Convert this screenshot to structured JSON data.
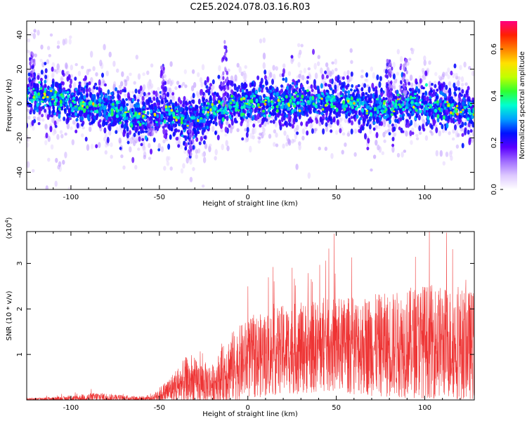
{
  "page_title": "C2E5.2024.078.03.16.R03",
  "chart_data": [
    {
      "type": "heatmap",
      "xlabel": "Height of straight line (km)",
      "ylabel": "Frequency (Hz)",
      "xlim": [
        -125,
        128
      ],
      "ylim": [
        -50,
        48
      ],
      "x_ticks": [
        -100,
        -50,
        0,
        50,
        100
      ],
      "y_ticks": [
        -40,
        -20,
        0,
        20,
        40
      ],
      "colorbar": {
        "label": "Normalized spectral amplitude",
        "range": [
          0.0,
          0.72
        ],
        "ticks": [
          "0.0",
          "0.2",
          "0.4",
          "0.6"
        ],
        "tick_values": [
          0.0,
          0.2,
          0.4,
          0.6
        ],
        "colormap": [
          "#ffffff",
          "#ddc8ff",
          "#a06cff",
          "#5a00ff",
          "#0010ff",
          "#00a0ff",
          "#00ffd0",
          "#30ff30",
          "#c0ff00",
          "#ffe000",
          "#ff8000",
          "#ff2000",
          "#ff0080"
        ]
      },
      "feature_center_hz": [
        {
          "x": -120,
          "y": 6
        },
        {
          "x": -100,
          "y": 0
        },
        {
          "x": -80,
          "y": -2
        },
        {
          "x": -58,
          "y": -10
        },
        {
          "x": -48,
          "y": -4
        },
        {
          "x": -33,
          "y": -12
        },
        {
          "x": -20,
          "y": -4
        },
        {
          "x": 0,
          "y": 1
        },
        {
          "x": 20,
          "y": 0
        },
        {
          "x": 40,
          "y": 2
        },
        {
          "x": 60,
          "y": 0
        },
        {
          "x": 70,
          "y": -4
        },
        {
          "x": 90,
          "y": 0
        },
        {
          "x": 110,
          "y": -2
        },
        {
          "x": 125,
          "y": -4
        }
      ]
    },
    {
      "type": "line",
      "xlabel": "Height of straight line (km)",
      "ylabel": "SNR (10 * v/v)",
      "y_unit_label": "(x10",
      "y_unit_exp": "4",
      "y_unit_close": ")",
      "xlim": [
        -125,
        128
      ],
      "ylim": [
        0,
        3.7
      ],
      "x_ticks": [
        -100,
        -50,
        0,
        50,
        100
      ],
      "y_ticks": [
        1,
        2,
        3
      ],
      "color": "#ee3333",
      "envelope": [
        {
          "x": -125,
          "mean": 0.02,
          "amp": 0.04
        },
        {
          "x": -100,
          "mean": 0.03,
          "amp": 0.1
        },
        {
          "x": -85,
          "mean": 0.06,
          "amp": 0.2
        },
        {
          "x": -70,
          "mean": 0.04,
          "amp": 0.12
        },
        {
          "x": -55,
          "mean": 0.03,
          "amp": 0.08
        },
        {
          "x": -45,
          "mean": 0.2,
          "amp": 0.5
        },
        {
          "x": -35,
          "mean": 0.4,
          "amp": 1.0
        },
        {
          "x": -20,
          "mean": 0.35,
          "amp": 0.8
        },
        {
          "x": -10,
          "mean": 0.7,
          "amp": 1.4
        },
        {
          "x": 0,
          "mean": 0.9,
          "amp": 1.6
        },
        {
          "x": 20,
          "mean": 1.1,
          "amp": 1.8
        },
        {
          "x": 50,
          "mean": 1.2,
          "amp": 1.9
        },
        {
          "x": 80,
          "mean": 1.2,
          "amp": 2.1
        },
        {
          "x": 100,
          "mean": 1.3,
          "amp": 2.3
        },
        {
          "x": 128,
          "mean": 1.2,
          "amp": 2.2
        }
      ]
    }
  ]
}
